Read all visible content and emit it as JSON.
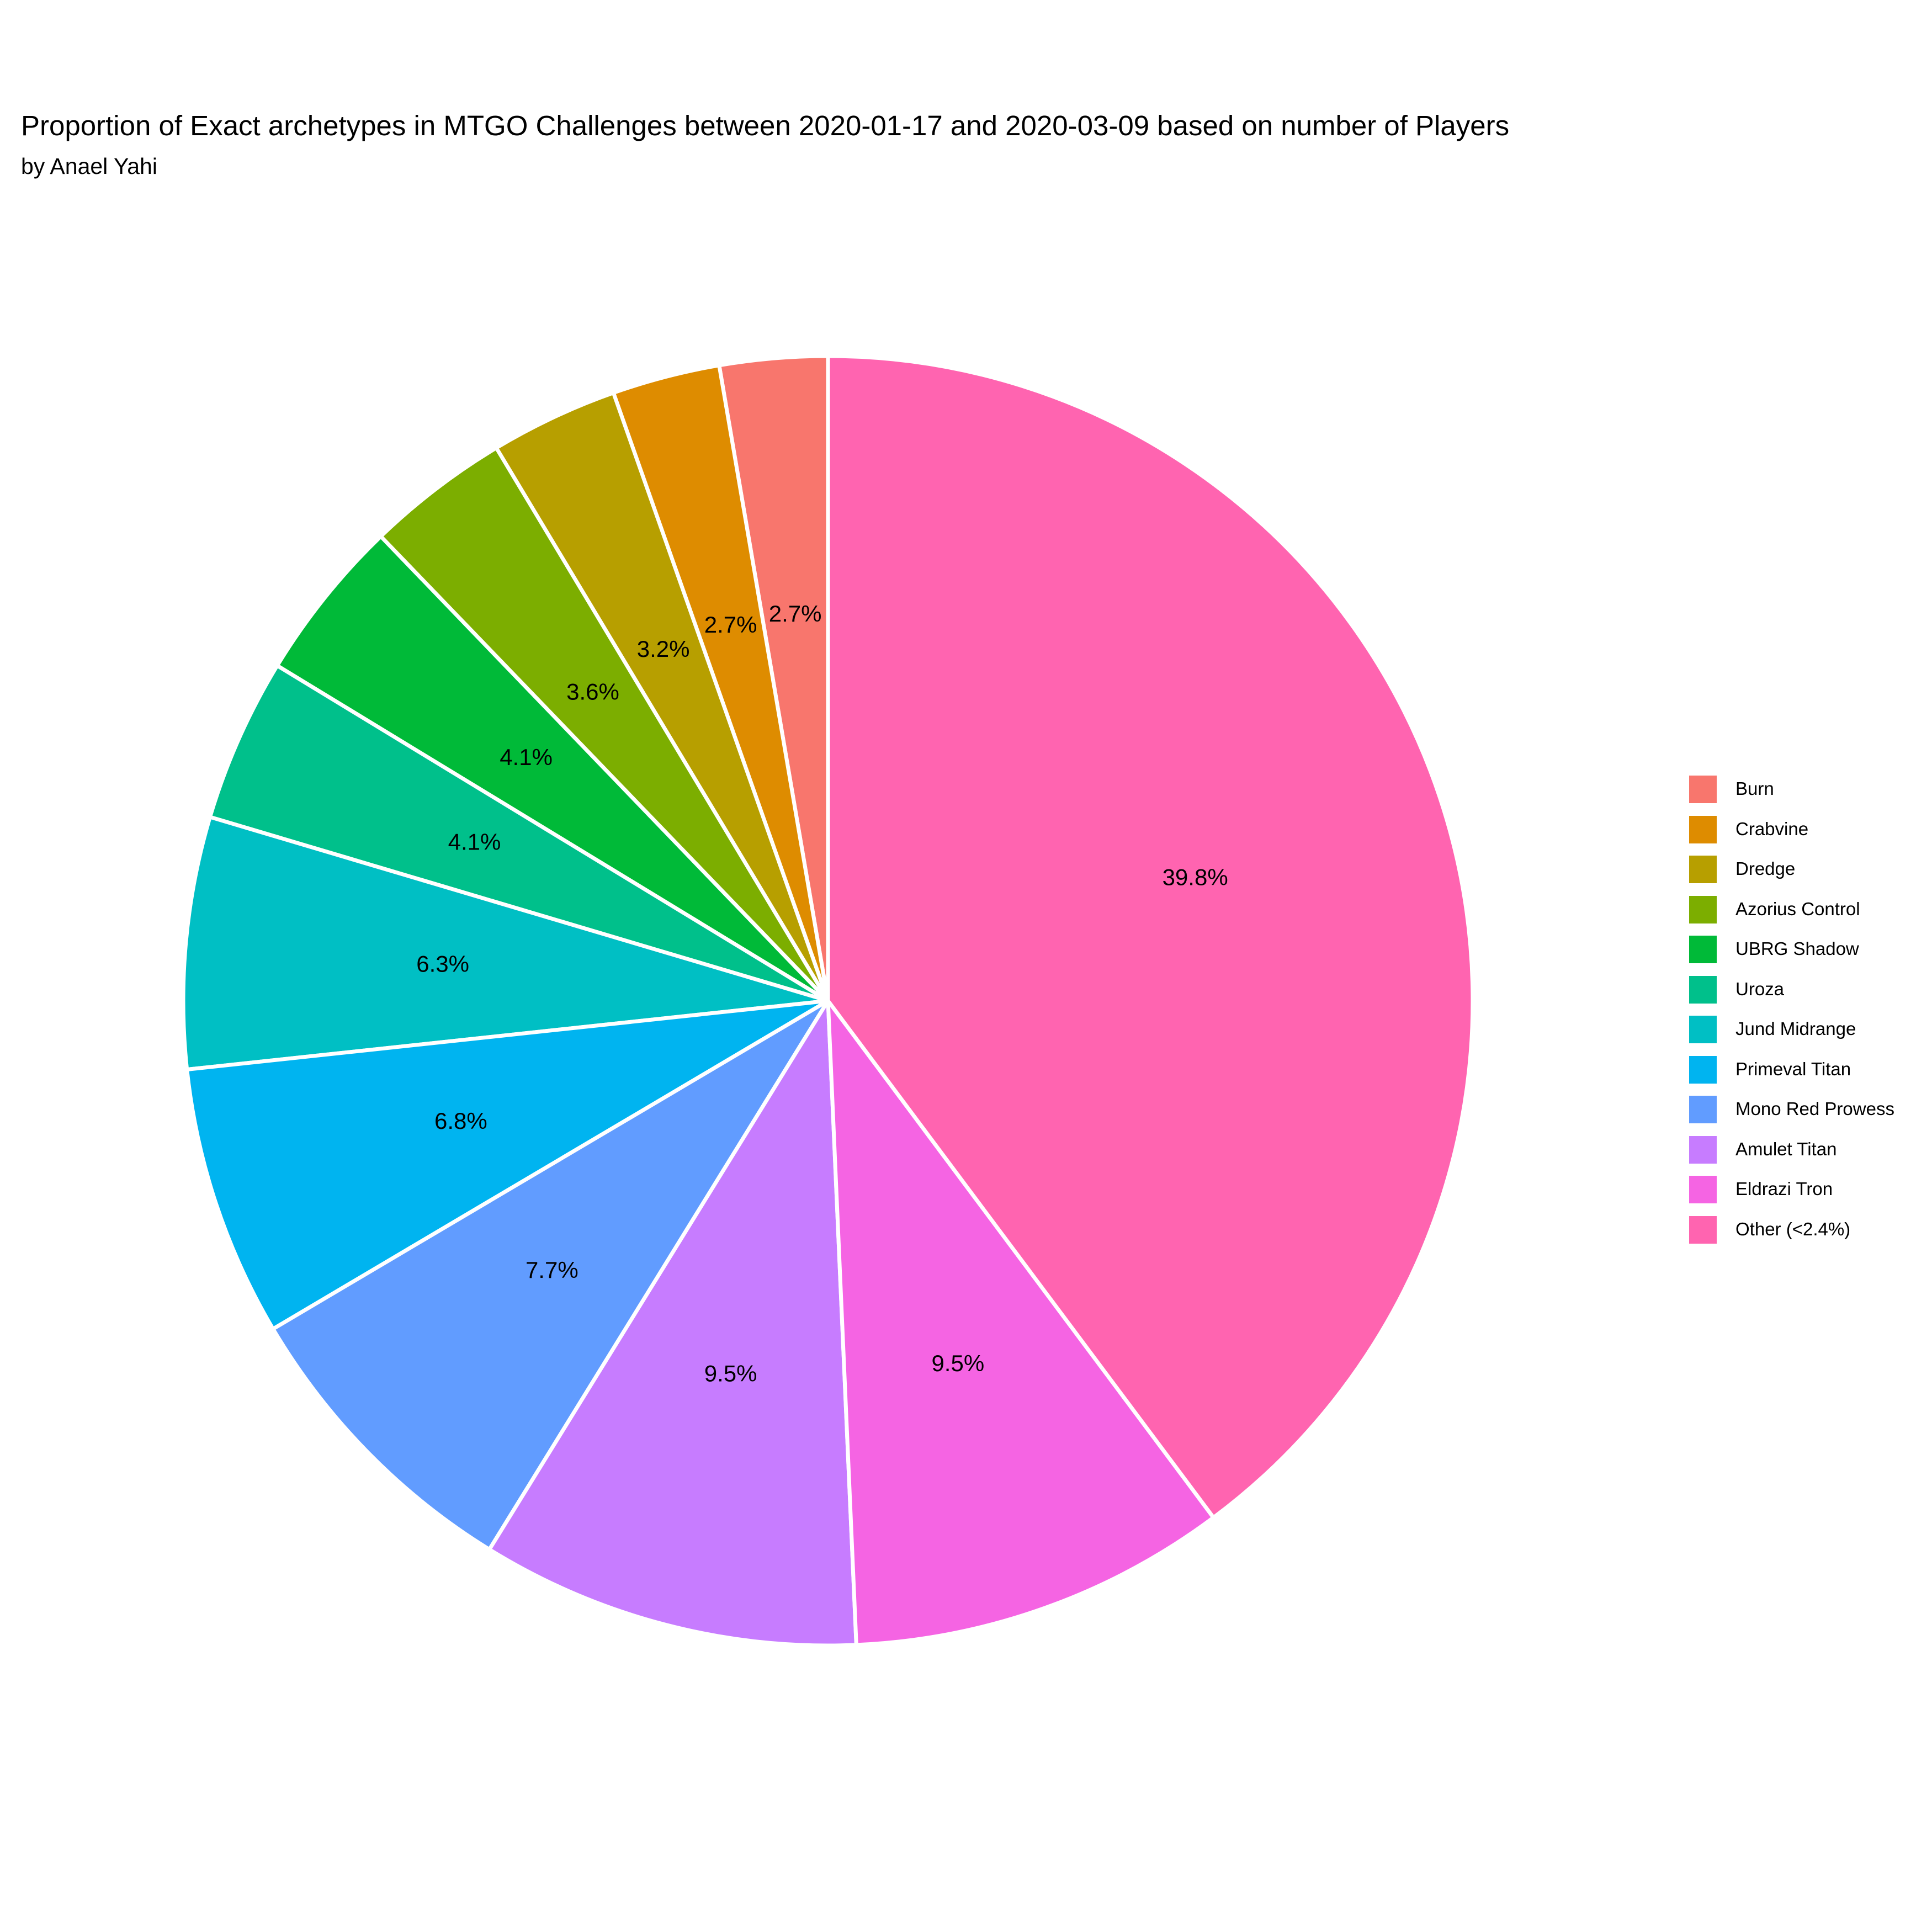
{
  "chart_data": {
    "type": "pie",
    "title": "Proportion of Exact archetypes in MTGO Challenges between 2020-01-17 and 2020-03-09 based on number of Players",
    "subtitle": "by Anael Yahi",
    "legend_position": "right",
    "slices": [
      {
        "name": "Burn",
        "value": 2.7,
        "label": "2.7%",
        "color": "#F8766D"
      },
      {
        "name": "Crabvine",
        "value": 2.7,
        "label": "2.7%",
        "color": "#DE8C00"
      },
      {
        "name": "Dredge",
        "value": 3.2,
        "label": "3.2%",
        "color": "#B79F00"
      },
      {
        "name": "Azorius Control",
        "value": 3.6,
        "label": "3.6%",
        "color": "#7CAE00"
      },
      {
        "name": "UBRG Shadow",
        "value": 4.1,
        "label": "4.1%",
        "color": "#00BA38"
      },
      {
        "name": "Uroza",
        "value": 4.1,
        "label": "4.1%",
        "color": "#00C08B"
      },
      {
        "name": "Jund Midrange",
        "value": 6.3,
        "label": "6.3%",
        "color": "#00BFC4"
      },
      {
        "name": "Primeval Titan",
        "value": 6.8,
        "label": "6.8%",
        "color": "#00B4F0"
      },
      {
        "name": "Mono Red Prowess",
        "value": 7.7,
        "label": "7.7%",
        "color": "#619CFF"
      },
      {
        "name": "Amulet Titan",
        "value": 9.5,
        "label": "9.5%",
        "color": "#C77CFF"
      },
      {
        "name": "Eldrazi Tron",
        "value": 9.5,
        "label": "9.5%",
        "color": "#F564E3"
      },
      {
        "name": "Other (<2.4%)",
        "value": 39.8,
        "label": "39.8%",
        "color": "#FF64B0"
      }
    ]
  }
}
